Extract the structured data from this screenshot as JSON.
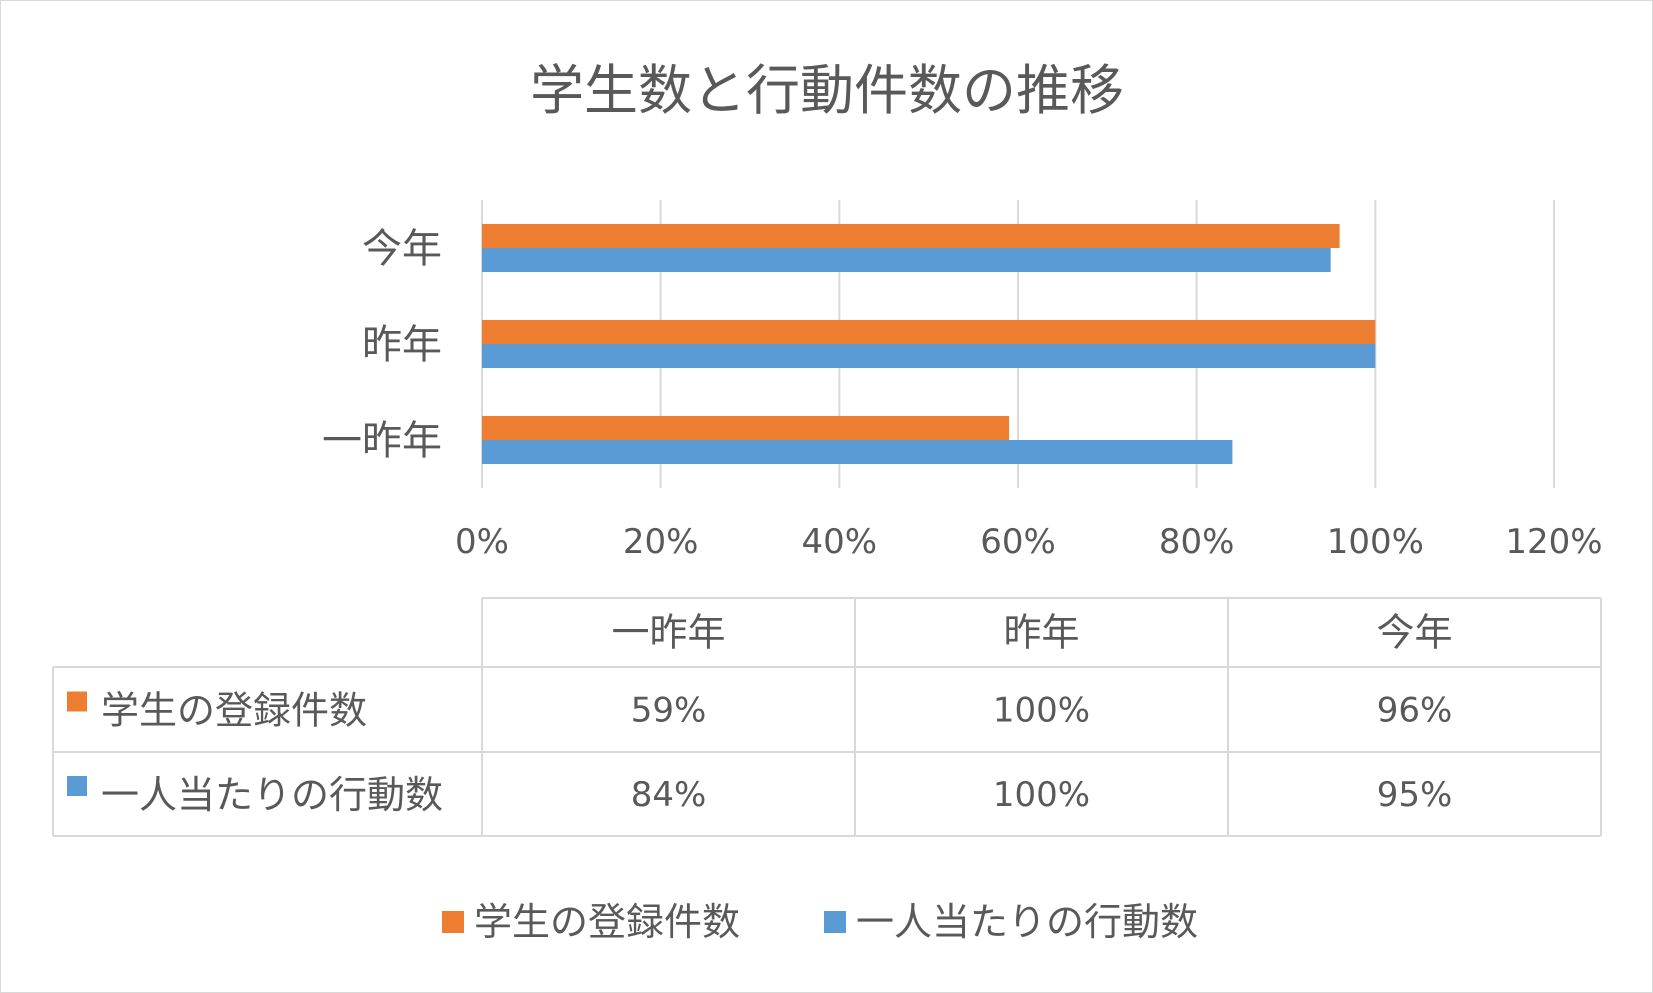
{
  "chart_data": {
    "type": "bar",
    "orientation": "horizontal",
    "title": "学生数と行動件数の推移",
    "categories": [
      "一昨年",
      "昨年",
      "今年"
    ],
    "series": [
      {
        "name": "学生の登録件数",
        "values": [
          59,
          100,
          96
        ],
        "color": "#ED7D31"
      },
      {
        "name": "一人当たりの行動数",
        "values": [
          84,
          100,
          95
        ],
        "color": "#5B9BD5"
      }
    ],
    "xlim": [
      0,
      120
    ],
    "x_ticks": [
      0,
      20,
      40,
      60,
      80,
      100,
      120
    ],
    "x_tick_labels": [
      "0%",
      "20%",
      "40%",
      "60%",
      "80%",
      "100%",
      "120%"
    ],
    "grid": true,
    "legend": "bottom",
    "data_table": {
      "header": [
        "一昨年",
        "昨年",
        "今年"
      ],
      "rows": [
        {
          "label": "学生の登録件数",
          "cells": [
            "59%",
            "100%",
            "96%"
          ]
        },
        {
          "label": "一人当たりの行動数",
          "cells": [
            "84%",
            "100%",
            "95%"
          ]
        }
      ]
    }
  },
  "colors": {
    "text": "#595959",
    "grid": "#d9d9d9",
    "border": "#d9d9d9"
  }
}
